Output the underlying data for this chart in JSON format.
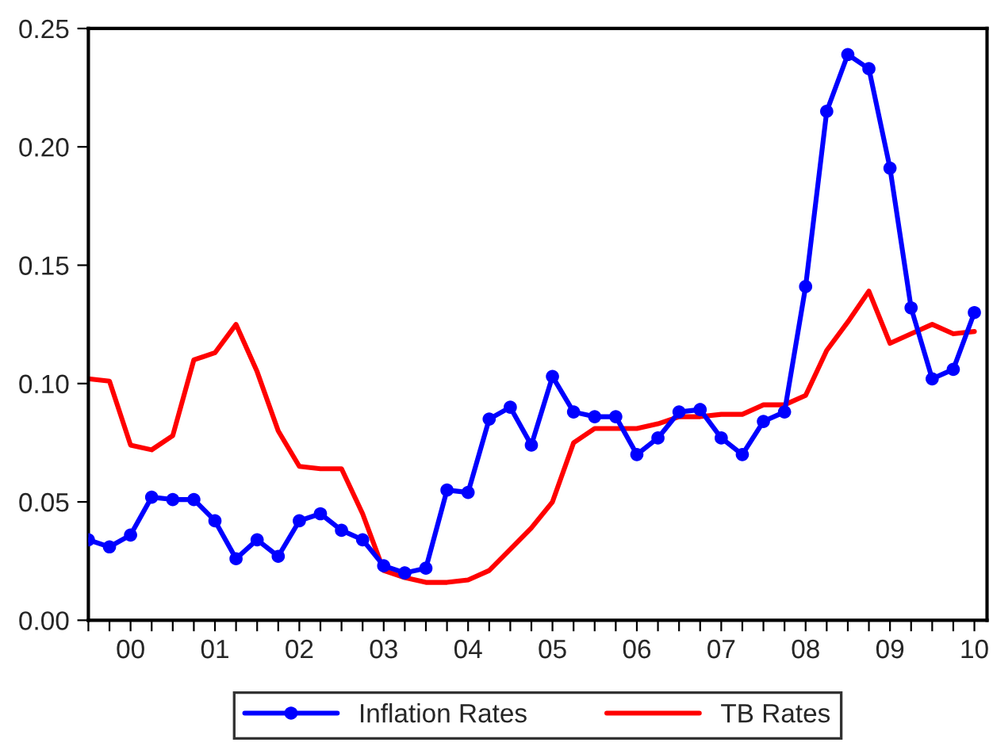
{
  "chart_data": {
    "type": "line",
    "categories": [
      null,
      null,
      "00",
      null,
      null,
      null,
      "01",
      null,
      null,
      null,
      "02",
      null,
      null,
      null,
      "03",
      null,
      null,
      null,
      "04",
      null,
      null,
      null,
      "05",
      null,
      null,
      null,
      "06",
      null,
      null,
      null,
      "07",
      null,
      null,
      null,
      "08",
      null,
      null,
      null,
      "09",
      null,
      null,
      null,
      "10"
    ],
    "series": [
      {
        "name": "Inflation Rates",
        "color": "#0000ff",
        "marker": "circle",
        "values": [
          0.034,
          0.031,
          0.036,
          0.052,
          0.051,
          0.051,
          0.042,
          0.026,
          0.034,
          0.027,
          0.042,
          0.045,
          0.038,
          0.034,
          0.023,
          0.02,
          0.022,
          0.055,
          0.054,
          0.085,
          0.09,
          0.074,
          0.103,
          0.088,
          0.086,
          0.086,
          0.07,
          0.077,
          0.088,
          0.089,
          0.077,
          0.07,
          0.084,
          0.088,
          0.141,
          0.215,
          0.239,
          0.233,
          0.191,
          0.132,
          0.102,
          0.106,
          0.13
        ]
      },
      {
        "name": "TB Rates",
        "color": "#ff0000",
        "marker": "none",
        "values": [
          0.102,
          0.101,
          0.074,
          0.072,
          0.078,
          0.11,
          0.113,
          0.125,
          0.105,
          0.08,
          0.065,
          0.064,
          0.064,
          0.045,
          0.021,
          0.018,
          0.016,
          0.016,
          0.017,
          0.021,
          0.03,
          0.039,
          0.05,
          0.075,
          0.081,
          0.081,
          0.081,
          0.083,
          0.086,
          0.086,
          0.087,
          0.087,
          0.091,
          0.091,
          0.095,
          0.114,
          0.126,
          0.139,
          0.117,
          0.121,
          0.125,
          0.121,
          0.122
        ]
      }
    ],
    "ylim": [
      0,
      0.25
    ],
    "yticks": [
      {
        "value": 0,
        "label": "0.00"
      },
      {
        "value": 0.05,
        "label": "0.05"
      },
      {
        "value": 0.1,
        "label": "0.10"
      },
      {
        "value": 0.15,
        "label": "0.15"
      },
      {
        "value": 0.2,
        "label": "0.20"
      },
      {
        "value": 0.25,
        "label": "0.25"
      }
    ],
    "grid": false,
    "legend": "bottom"
  }
}
